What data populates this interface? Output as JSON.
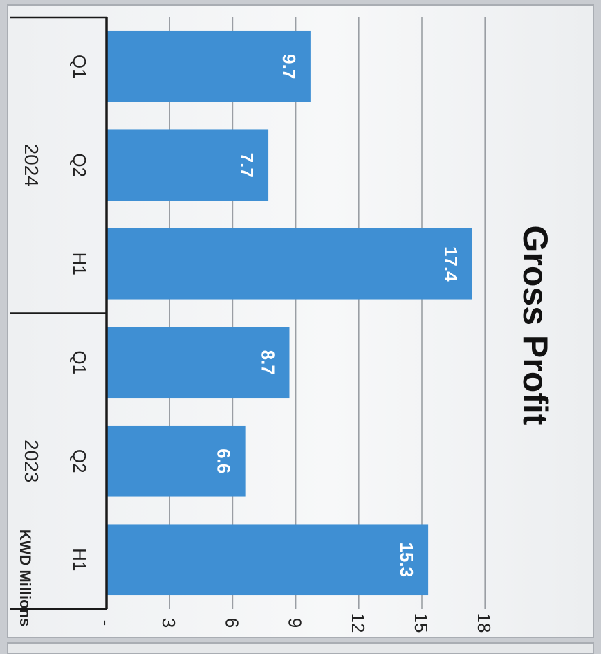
{
  "chart_data": {
    "type": "bar",
    "title": "Gross Profit",
    "ylabel": "KWD Millions",
    "ylim": [
      0,
      18
    ],
    "y_ticks": [
      "-",
      "3",
      "6",
      "9",
      "12",
      "15",
      "18"
    ],
    "y_tick_values": [
      0,
      3,
      6,
      9,
      12,
      15,
      18
    ],
    "grid": true,
    "groups": [
      {
        "name": "2024",
        "categories": [
          "Q1",
          "Q2",
          "H1"
        ],
        "values": [
          9.7,
          7.7,
          17.4
        ],
        "labels": [
          "9.7",
          "7.7",
          "17.4"
        ]
      },
      {
        "name": "2023",
        "categories": [
          "Q1",
          "Q2",
          "H1"
        ],
        "values": [
          8.7,
          6.6,
          15.3
        ],
        "labels": [
          "8.7",
          "6.6",
          "15.3"
        ]
      }
    ],
    "colors": {
      "bar": "#3f8fd3",
      "grid": "#9a9ea4",
      "axis": "#1a1a1a"
    }
  }
}
